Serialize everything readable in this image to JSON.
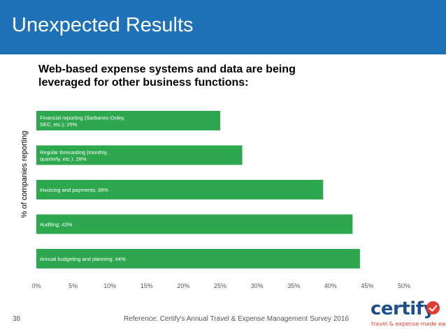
{
  "header": {
    "title": "Unexpected Results",
    "bg_color": "#1f72b8"
  },
  "chart_data": {
    "type": "bar",
    "orientation": "horizontal",
    "title": "Web-based expense systems and data are being leveraged for other business functions:",
    "ylabel": "% of companies reporting",
    "xlabel": "",
    "xlim": [
      0,
      50
    ],
    "x_ticks": [
      "0%",
      "5%",
      "10%",
      "15%",
      "20%",
      "25%",
      "30%",
      "35%",
      "40%",
      "45%",
      "50%"
    ],
    "bar_color": "#2ea84f",
    "grid": false,
    "categories": [
      "Financial reporting (Sarbanes-Oxley, SEC, etc.): 25%",
      "Regular forecasting (monthly, quarterly, etc.): 28%",
      "Invoicing and payments: 39%",
      "Auditing: 43%",
      "Annual budgeting and planning: 44%"
    ],
    "values": [
      25,
      28,
      39,
      43,
      44
    ]
  },
  "footer": {
    "page_number": "38",
    "reference": "Reference: Certify's Annual Travel & Expense Management Survey 2016"
  },
  "logo": {
    "word": "certify",
    "tagline": "travel & expense made easy",
    "brand_color": "#1e4f8c",
    "accent_color": "#e23b30"
  }
}
